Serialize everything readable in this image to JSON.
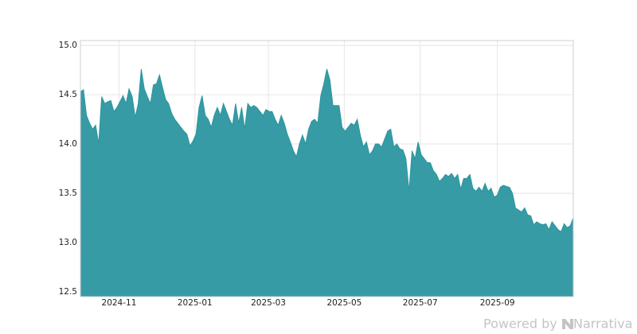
{
  "chart_data": {
    "type": "area",
    "series": [
      {
        "color": "#2b969f",
        "values": [
          14.53,
          14.55,
          14.29,
          14.21,
          14.15,
          14.19,
          14.0,
          14.48,
          14.41,
          14.43,
          14.44,
          14.33,
          14.37,
          14.43,
          14.49,
          14.41,
          14.56,
          14.48,
          14.27,
          14.41,
          14.76,
          14.56,
          14.48,
          14.41,
          14.6,
          14.61,
          14.7,
          14.57,
          14.45,
          14.41,
          14.31,
          14.25,
          14.21,
          14.17,
          14.13,
          14.1,
          13.98,
          14.03,
          14.1,
          14.37,
          14.49,
          14.29,
          14.25,
          14.17,
          14.29,
          14.37,
          14.29,
          14.41,
          14.33,
          14.25,
          14.19,
          14.41,
          14.21,
          14.37,
          14.15,
          14.41,
          14.37,
          14.39,
          14.37,
          14.33,
          14.29,
          14.35,
          14.33,
          14.33,
          14.25,
          14.19,
          14.29,
          14.21,
          14.1,
          14.02,
          13.93,
          13.87,
          14.0,
          14.09,
          14.0,
          14.15,
          14.23,
          14.25,
          14.21,
          14.49,
          14.61,
          14.76,
          14.65,
          14.39,
          14.39,
          14.39,
          14.17,
          14.13,
          14.17,
          14.21,
          14.19,
          14.25,
          14.09,
          13.97,
          14.02,
          13.89,
          13.93,
          14.0,
          14.0,
          13.97,
          14.05,
          14.13,
          14.15,
          13.97,
          14.0,
          13.95,
          13.94,
          13.85,
          13.52,
          13.93,
          13.85,
          14.02,
          13.89,
          13.85,
          13.81,
          13.81,
          13.73,
          13.69,
          13.62,
          13.65,
          13.69,
          13.67,
          13.7,
          13.65,
          13.69,
          13.54,
          13.65,
          13.65,
          13.69,
          13.55,
          13.52,
          13.56,
          13.52,
          13.6,
          13.52,
          13.55,
          13.46,
          13.48,
          13.56,
          13.58,
          13.57,
          13.56,
          13.5,
          13.35,
          13.33,
          13.31,
          13.35,
          13.28,
          13.27,
          13.18,
          13.21,
          13.19,
          13.18,
          13.19,
          13.13,
          13.21,
          13.17,
          13.13,
          13.11,
          13.19,
          13.15,
          13.17,
          13.25
        ]
      }
    ],
    "xlim": [
      "2024-10",
      "2025-11"
    ],
    "xticks": [
      "2024-11",
      "2025-01",
      "2025-03",
      "2025-05",
      "2025-07",
      "2025-09"
    ],
    "ylim": [
      12.45,
      15.05
    ],
    "yticks": [
      12.5,
      {
        "value": 13,
        "label": "13.0"
      },
      13.5,
      {
        "value": 14,
        "label": "14.0"
      },
      14.5,
      {
        "value": 15,
        "label": "15.0"
      }
    ],
    "grid": true
  },
  "watermark": {
    "prefix": "Powered by",
    "brand": "Narrativa"
  }
}
